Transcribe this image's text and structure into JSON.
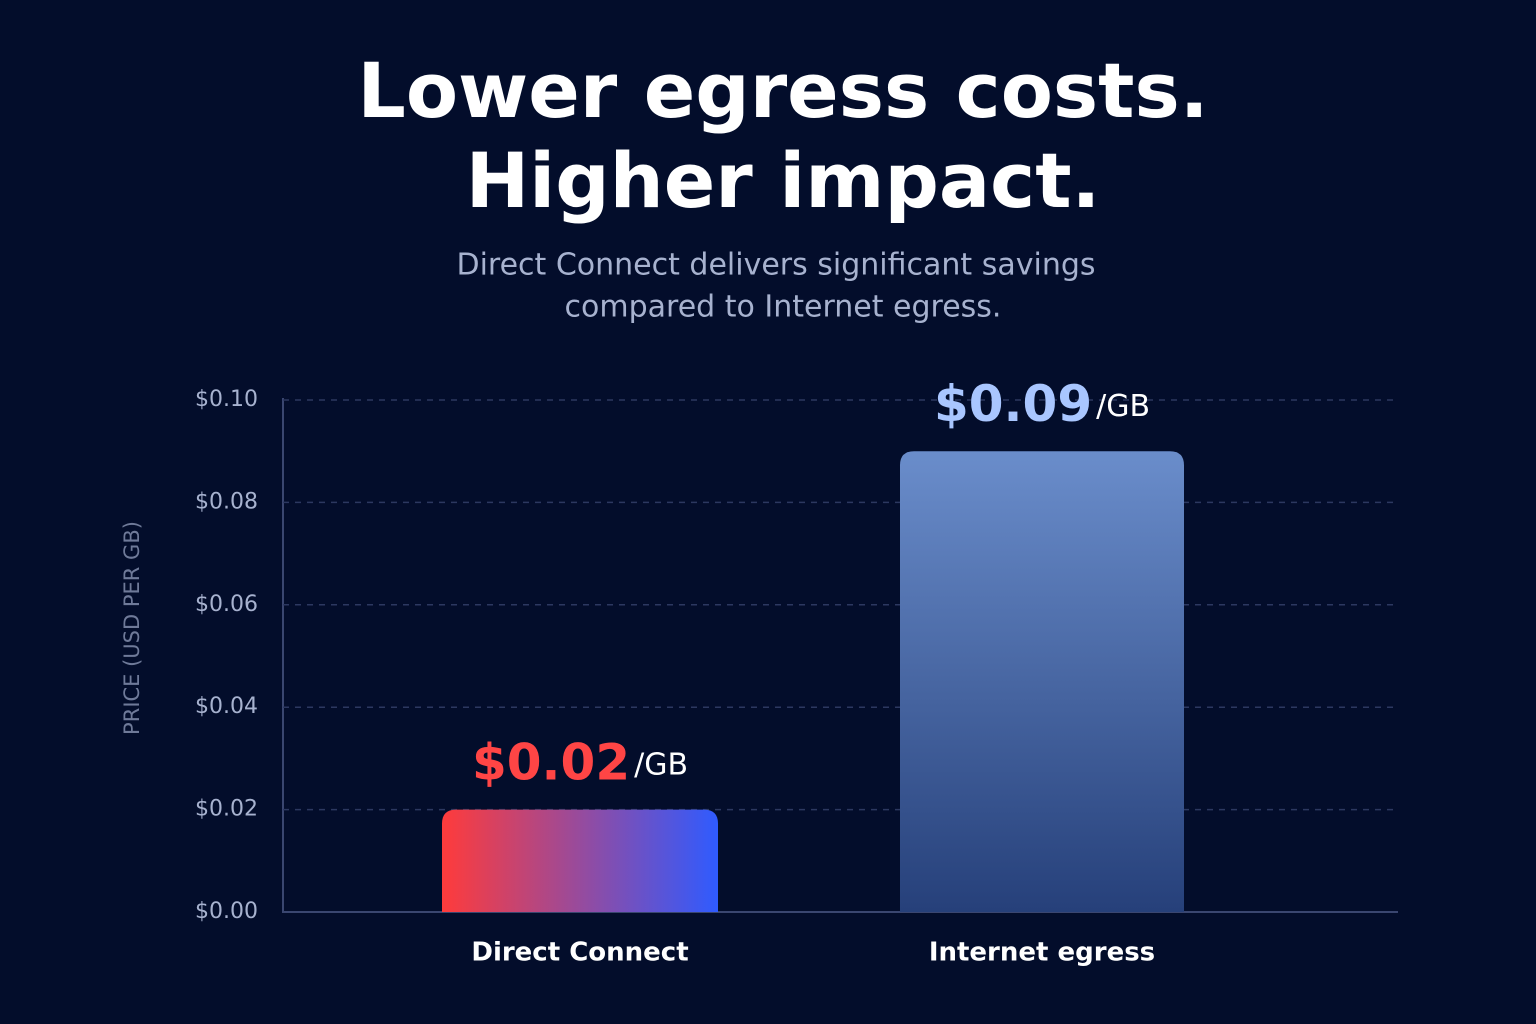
{
  "chart_data": {
    "type": "bar",
    "title": [
      "Lower egress costs.",
      "Higher impact."
    ],
    "subtitle": [
      "Direct Connect delivers significant savings",
      "compared to Internet egress."
    ],
    "y_axis_label": "PRICE (USD PER GB)",
    "categories": [
      "Direct Connect",
      "Internet egress"
    ],
    "values": [
      0.02,
      0.09
    ],
    "value_labels": [
      "$0.02",
      "$0.09"
    ],
    "value_label_unit": "/GB",
    "bar_gradients": [
      [
        "#ff3b3b",
        "#2f5bff"
      ],
      [
        "#6a8dcb",
        "#26407a"
      ]
    ],
    "gradient_directions": [
      "horizontal",
      "vertical"
    ],
    "value_label_colors": [
      "#ff4545",
      "#a9c6ff"
    ],
    "ylim": [
      0,
      0.1
    ],
    "yticks": [
      {
        "value": 0,
        "label": "$0.00"
      },
      {
        "value": 0.02,
        "label": "$0.02"
      },
      {
        "value": 0.04,
        "label": "$0.04"
      },
      {
        "value": 0.06,
        "label": "$0.06"
      },
      {
        "value": 0.08,
        "label": "$0.08"
      },
      {
        "value": 0.1,
        "label": "$0.10"
      }
    ],
    "grid": true
  }
}
